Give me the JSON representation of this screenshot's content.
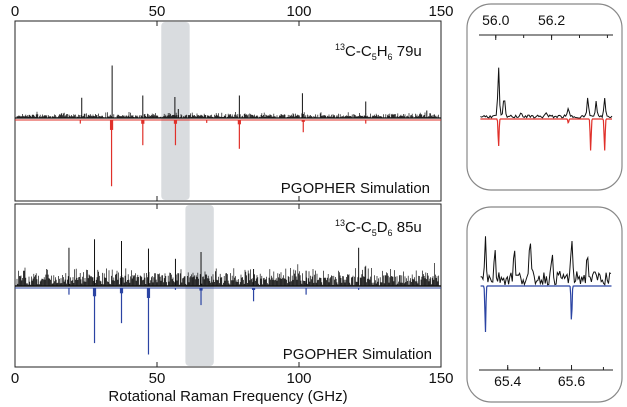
{
  "chart_data": [
    {
      "type": "line",
      "panel": "top-main",
      "title_top": "",
      "label": "13C-C5H6 79u",
      "label_parts": {
        "pre": "13",
        "mid": "C-C",
        "sub1": "5",
        "mid2": "H",
        "sub2": "6",
        "tail": " 79u"
      },
      "sim_label": "PGOPHER Simulation",
      "sim_color": "#e0302a",
      "xlim": [
        0,
        150
      ],
      "xticks": [
        0,
        50,
        100,
        150
      ],
      "highlight_range": [
        51.5,
        61.5
      ],
      "experimental_peaks": [
        {
          "x": 23.5,
          "y": 0.27
        },
        {
          "x": 34.2,
          "y": 0.7
        },
        {
          "x": 45.0,
          "y": 0.3
        },
        {
          "x": 56.3,
          "y": 0.28
        },
        {
          "x": 57.5,
          "y": 0.12
        },
        {
          "x": 79.0,
          "y": 0.3
        },
        {
          "x": 101.2,
          "y": 0.33
        },
        {
          "x": 123.5,
          "y": 0.22
        },
        {
          "x": 145.0,
          "y": 0.1
        }
      ],
      "simulated_peaks": [
        {
          "x": 23.0,
          "y": 0.05
        },
        {
          "x": 34.0,
          "y": 0.92
        },
        {
          "x": 45.0,
          "y": 0.35
        },
        {
          "x": 56.5,
          "y": 0.35
        },
        {
          "x": 67.5,
          "y": 0.04
        },
        {
          "x": 79.0,
          "y": 0.4
        },
        {
          "x": 101.5,
          "y": 0.17
        },
        {
          "x": 123.5,
          "y": 0.05
        }
      ]
    },
    {
      "type": "line",
      "panel": "bottom-main",
      "label": "13C-C5D6 85u",
      "label_parts": {
        "pre": "13",
        "mid": "C-C",
        "sub1": "5",
        "mid2": "D",
        "sub2": "6",
        "tail": " 85u"
      },
      "sim_label": "PGOPHER Simulation",
      "sim_color": "#2b44a3",
      "xlim": [
        0,
        150
      ],
      "xticks": [
        0,
        50,
        100,
        150
      ],
      "xlabel": "Rotational Raman Frequency (GHz)",
      "highlight_range": [
        60,
        70
      ],
      "experimental_peaks": [
        {
          "x": 19.0,
          "y": 0.45
        },
        {
          "x": 28.0,
          "y": 0.55
        },
        {
          "x": 37.5,
          "y": 0.53
        },
        {
          "x": 47.0,
          "y": 0.44
        },
        {
          "x": 56.5,
          "y": 0.32
        },
        {
          "x": 65.5,
          "y": 0.4
        },
        {
          "x": 84.0,
          "y": 0.2
        },
        {
          "x": 102.5,
          "y": 0.18
        },
        {
          "x": 121.0,
          "y": 0.45
        }
      ],
      "simulated_peaks": [
        {
          "x": 19.0,
          "y": 0.07
        },
        {
          "x": 28.0,
          "y": 0.58
        },
        {
          "x": 37.5,
          "y": 0.37
        },
        {
          "x": 47.0,
          "y": 0.7
        },
        {
          "x": 56.5,
          "y": 0.02
        },
        {
          "x": 65.5,
          "y": 0.18
        },
        {
          "x": 84.0,
          "y": 0.14
        },
        {
          "x": 102.5,
          "y": 0.07
        },
        {
          "x": 121.0,
          "y": 0.02
        }
      ]
    },
    {
      "type": "line",
      "panel": "top-inset",
      "xlim": [
        55.94,
        56.42
      ],
      "xticks": [
        56.0,
        56.2
      ],
      "sim_color": "#e0302a",
      "experimental_peaks": [
        {
          "x": 56.01,
          "y": 0.6
        },
        {
          "x": 56.03,
          "y": 0.25
        },
        {
          "x": 56.09,
          "y": 0.06
        },
        {
          "x": 56.18,
          "y": 0.05
        },
        {
          "x": 56.26,
          "y": 0.1
        },
        {
          "x": 56.33,
          "y": 0.25
        },
        {
          "x": 56.36,
          "y": 0.18
        },
        {
          "x": 56.39,
          "y": 0.22
        }
      ],
      "simulated_peaks": [
        {
          "x": 56.01,
          "y": 0.4
        },
        {
          "x": 56.26,
          "y": 0.06
        },
        {
          "x": 56.34,
          "y": 0.45
        },
        {
          "x": 56.39,
          "y": 0.45
        }
      ]
    },
    {
      "type": "line",
      "panel": "bottom-inset",
      "xlim": [
        65.31,
        65.73
      ],
      "xticks": [
        65.4,
        65.6
      ],
      "sim_color": "#2b44a3",
      "experimental_peaks": [
        {
          "x": 65.33,
          "y": 0.5
        },
        {
          "x": 65.36,
          "y": 0.3
        },
        {
          "x": 65.42,
          "y": 0.35
        },
        {
          "x": 65.47,
          "y": 0.4
        },
        {
          "x": 65.54,
          "y": 0.25
        },
        {
          "x": 65.6,
          "y": 0.4
        },
        {
          "x": 65.65,
          "y": 0.28
        }
      ],
      "simulated_peaks": [
        {
          "x": 65.33,
          "y": 0.55
        },
        {
          "x": 65.6,
          "y": 0.42
        }
      ]
    }
  ]
}
